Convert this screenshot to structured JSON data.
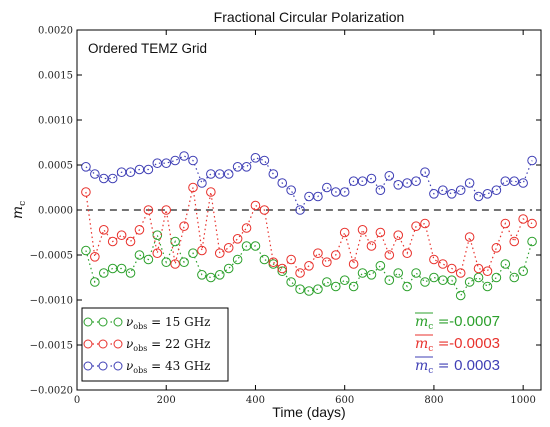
{
  "chart_data": {
    "type": "line",
    "title": "Fractional Circular Polarization",
    "xlabel": "Time (days)",
    "ylabel": "m",
    "ylabel_sub": "c",
    "annotation": "Ordered TEMZ Grid",
    "xlim": [
      0,
      1040
    ],
    "ylim": [
      -0.002,
      0.002
    ],
    "xticks": [
      0,
      200,
      400,
      600,
      800,
      1000
    ],
    "yticks": [
      -0.002,
      -0.0015,
      -0.001,
      -0.0005,
      0.0,
      0.0005,
      0.001,
      0.0015,
      0.002
    ],
    "ytick_labels": [
      "−0.0020",
      "−0.0015",
      "−0.0010",
      "−0.0005",
      "0.0000",
      "0.0005",
      "0.0010",
      "0.0015",
      "0.0020"
    ],
    "zero_line": 0.0,
    "grid": false,
    "legend_position": "bottom-left",
    "x": [
      20,
      40,
      60,
      80,
      100,
      120,
      140,
      160,
      180,
      200,
      220,
      240,
      260,
      280,
      300,
      320,
      340,
      360,
      380,
      400,
      420,
      440,
      460,
      480,
      500,
      520,
      540,
      560,
      580,
      600,
      620,
      640,
      660,
      680,
      700,
      720,
      740,
      760,
      780,
      800,
      820,
      840,
      860,
      880,
      900,
      920,
      940,
      960,
      980,
      1000,
      1020
    ],
    "series": [
      {
        "name": "ν",
        "name_sub": "obs",
        "name_value": " = 15 GHz",
        "color": "#2ca02c",
        "mean_label": "m",
        "mean_sub": "c",
        "mean_value": "-0.0007",
        "values": [
          -0.00045,
          -0.0008,
          -0.0007,
          -0.00065,
          -0.00065,
          -0.0007,
          -0.0005,
          -0.00055,
          -0.00028,
          -0.00058,
          -0.00035,
          -0.00058,
          -0.00048,
          -0.00072,
          -0.00075,
          -0.00072,
          -0.00065,
          -0.00055,
          -0.0004,
          -0.0004,
          -0.00055,
          -0.0006,
          -0.00068,
          -0.0008,
          -0.00088,
          -0.0009,
          -0.00088,
          -0.0008,
          -0.00085,
          -0.00078,
          -0.00085,
          -0.0007,
          -0.00072,
          -0.00062,
          -0.00078,
          -0.0007,
          -0.00085,
          -0.0007,
          -0.0008,
          -0.00075,
          -0.00078,
          -0.00078,
          -0.00095,
          -0.0008,
          -0.00075,
          -0.00085,
          -0.00075,
          -0.0006,
          -0.00075,
          -0.00068,
          -0.00035
        ]
      },
      {
        "name": "ν",
        "name_sub": "obs",
        "name_value": " = 22 GHz",
        "color": "#e8322d",
        "mean_label": "m",
        "mean_sub": "c",
        "mean_value": "-0.0003",
        "values": [
          0.0002,
          -0.00052,
          -0.00022,
          -0.00035,
          -0.00028,
          -0.00035,
          -0.00022,
          0.0,
          -0.00048,
          0.0,
          -0.0006,
          -0.00018,
          0.00025,
          -0.00045,
          0.0002,
          -0.00048,
          -0.00042,
          -0.00032,
          -0.0002,
          5e-05,
          0.0,
          -0.00058,
          -0.00065,
          -0.00055,
          -0.0007,
          -0.00062,
          -0.00048,
          -0.00058,
          -0.0005,
          -0.00025,
          -0.0006,
          -0.00022,
          -0.0004,
          -0.00025,
          -0.0005,
          -0.00028,
          -0.00048,
          -0.00018,
          -0.00015,
          -0.00055,
          -0.0006,
          -0.00065,
          -0.0007,
          -0.0003,
          -0.00065,
          -0.00068,
          -0.00042,
          -0.00015,
          -0.00035,
          -0.0001,
          -0.00015
        ]
      },
      {
        "name": "ν",
        "name_sub": "obs",
        "name_value": " = 43 GHz",
        "color": "#3f3fb5",
        "mean_label": "m",
        "mean_sub": "c",
        "mean_value": "0.0003",
        "values": [
          0.00048,
          0.0004,
          0.00035,
          0.00035,
          0.00042,
          0.00042,
          0.00045,
          0.00045,
          0.00052,
          0.00052,
          0.00055,
          0.0006,
          0.00055,
          0.0003,
          0.0004,
          0.0004,
          0.0004,
          0.00048,
          0.00048,
          0.00058,
          0.00055,
          0.0004,
          0.0003,
          0.00022,
          0.0,
          0.00015,
          0.00015,
          0.00025,
          0.0002,
          0.0002,
          0.00032,
          0.00032,
          0.00035,
          0.00022,
          0.00038,
          0.00028,
          0.0003,
          0.00032,
          0.00042,
          0.00018,
          0.00022,
          0.00018,
          0.00022,
          0.0003,
          0.00015,
          0.00018,
          0.00022,
          0.00032,
          0.00032,
          0.0003,
          0.00055
        ]
      }
    ]
  }
}
